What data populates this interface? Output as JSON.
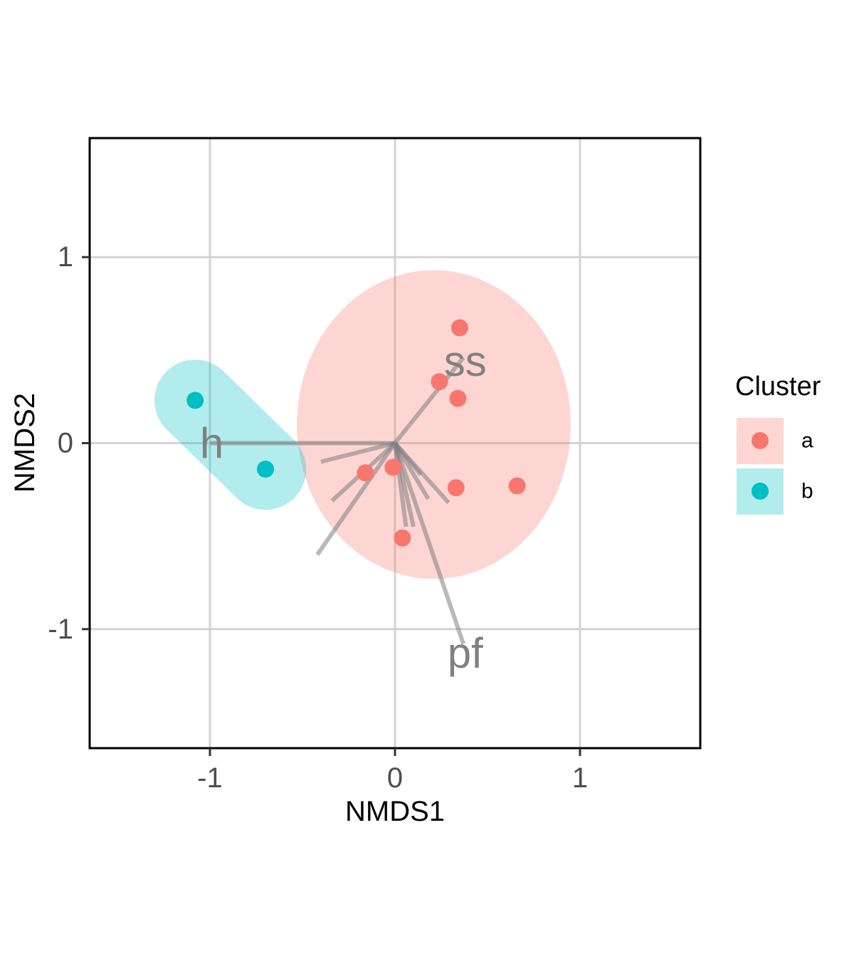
{
  "chart_data": {
    "type": "scatter",
    "xlabel": "NMDS1",
    "ylabel": "NMDS2",
    "xlim": [
      -1.65,
      1.65
    ],
    "ylim": [
      -1.64,
      1.64
    ],
    "x_ticks": [
      -1,
      0,
      1
    ],
    "y_ticks": [
      -1,
      0,
      1
    ],
    "x_tick_labels": [
      "-1",
      "0",
      "1"
    ],
    "y_tick_labels": [
      "-1",
      "0",
      "1"
    ],
    "grid": true,
    "legend": {
      "title": "Cluster",
      "placement": "right",
      "entries": [
        {
          "label": "a",
          "color": "#F8766D"
        },
        {
          "label": "b",
          "color": "#00BFC4"
        }
      ]
    },
    "series": [
      {
        "name": "a",
        "color": "#F8766D",
        "points": [
          {
            "x": 0.35,
            "y": 0.62
          },
          {
            "x": 0.24,
            "y": 0.33
          },
          {
            "x": 0.34,
            "y": 0.24
          },
          {
            "x": -0.16,
            "y": -0.16
          },
          {
            "x": -0.01,
            "y": -0.13
          },
          {
            "x": 0.33,
            "y": -0.24
          },
          {
            "x": 0.66,
            "y": -0.23
          },
          {
            "x": 0.04,
            "y": -0.51
          }
        ]
      },
      {
        "name": "b",
        "color": "#00BFC4",
        "points": [
          {
            "x": -1.08,
            "y": 0.23
          },
          {
            "x": -0.7,
            "y": -0.14
          }
        ]
      }
    ],
    "hulls": [
      {
        "cluster": "a",
        "color": "#F8766D",
        "opacity": 0.3,
        "shape": "ellipse",
        "center": [
          0.21,
          0.1
        ],
        "radii": [
          0.74,
          0.83
        ]
      },
      {
        "cluster": "b",
        "color": "#00BFC4",
        "opacity": 0.3,
        "shape": "rounded-capsule",
        "from": [
          -1.08,
          0.23
        ],
        "to": [
          -0.7,
          -0.14
        ],
        "radius": 0.22
      }
    ],
    "vectors": {
      "color": "#808080",
      "items": [
        {
          "x": -1.0,
          "y": 0.0
        },
        {
          "x": 0.37,
          "y": 0.46
        },
        {
          "x": 0.37,
          "y": -1.08
        },
        {
          "x": -0.4,
          "y": -0.1
        },
        {
          "x": -0.34,
          "y": -0.31
        },
        {
          "x": -0.42,
          "y": -0.6
        },
        {
          "x": 0.1,
          "y": -0.45
        },
        {
          "x": 0.18,
          "y": -0.3
        },
        {
          "x": 0.29,
          "y": -0.32
        },
        {
          "x": 0.14,
          "y": -0.17
        },
        {
          "x": 0.06,
          "y": -0.45
        }
      ],
      "labels": [
        {
          "text": "h",
          "x": -0.99,
          "y": 0.0
        },
        {
          "text": "ss",
          "x": 0.38,
          "y": 0.44
        },
        {
          "text": "pf",
          "x": 0.38,
          "y": -1.13
        }
      ]
    }
  }
}
